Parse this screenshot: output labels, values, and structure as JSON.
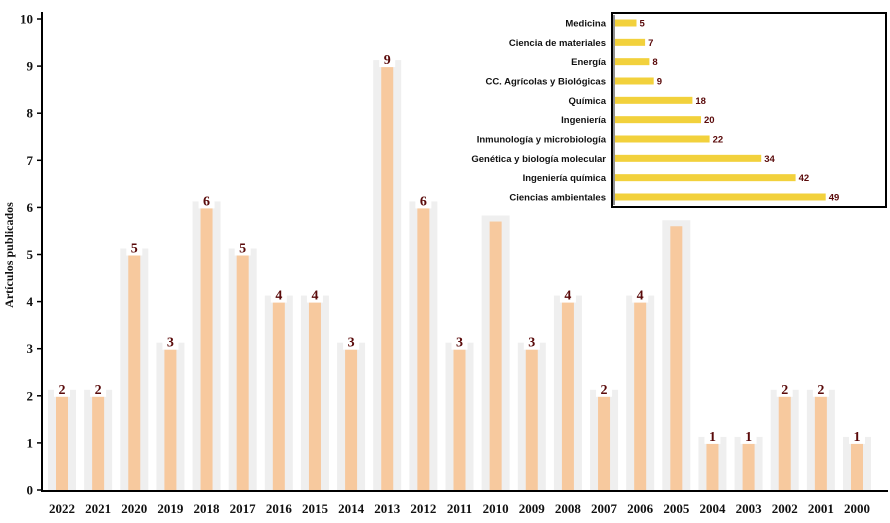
{
  "chart_data": [
    {
      "type": "bar",
      "ylabel": "Artículos publicados",
      "ylim": [
        0,
        10
      ],
      "yticks": [
        "0",
        "1",
        "2",
        "3",
        "4",
        "5",
        "6",
        "7",
        "8",
        "9",
        "10"
      ],
      "categories": [
        "2022",
        "2021",
        "2020",
        "2019",
        "2018",
        "2017",
        "2016",
        "2015",
        "2014",
        "2013",
        "2012",
        "2011",
        "2010",
        "2009",
        "2008",
        "2007",
        "2006",
        "2005",
        "2004",
        "2003",
        "2002",
        "2001",
        "2000"
      ],
      "values": [
        2,
        2,
        5,
        3,
        6,
        5,
        4,
        4,
        3,
        9,
        6,
        3,
        5.7,
        3,
        4,
        2,
        4,
        5.6,
        1,
        1,
        2,
        2,
        1
      ],
      "data_labels": [
        "2",
        "2",
        "5",
        "3",
        "6",
        "5",
        "4",
        "4",
        "3",
        "9",
        "6",
        "3",
        "",
        "3",
        "4",
        "2",
        "4",
        "",
        "1",
        "1",
        "2",
        "2",
        "1"
      ],
      "bar_color": "#f7c99e",
      "grid": false
    },
    {
      "type": "bar",
      "orientation": "horizontal",
      "categories": [
        "Medicina",
        "Ciencia de materiales",
        "Energía",
        "CC. Agrícolas y Biológicas",
        "Química",
        "Ingeniería",
        "Inmunología y microbiología",
        "Genética y biología molecular",
        "Ingeniería química",
        "Ciencias ambientales"
      ],
      "values": [
        5,
        7,
        8,
        9,
        18,
        20,
        22,
        34,
        42,
        49
      ],
      "data_labels": [
        "5",
        "7",
        "8",
        "9",
        "18",
        "20",
        "22",
        "34",
        "42",
        "49"
      ],
      "bar_color": "#f2d13c",
      "xlim": [
        0,
        50
      ]
    }
  ]
}
